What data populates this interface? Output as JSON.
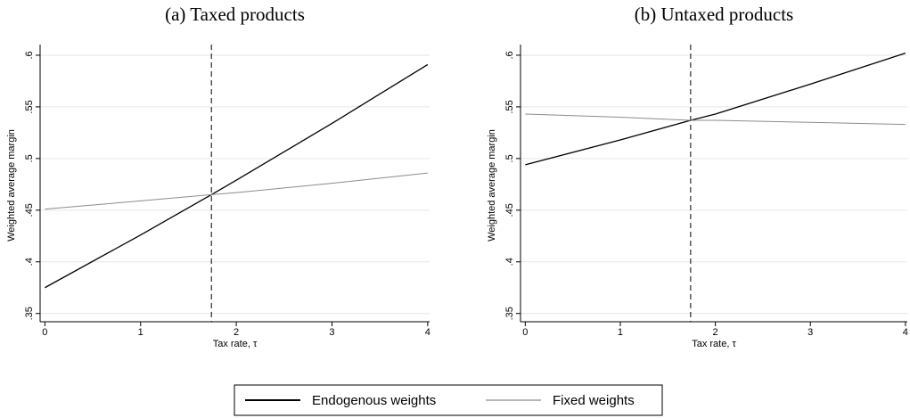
{
  "chart_data": [
    {
      "type": "line",
      "title": "(a) Taxed products",
      "x_label": "Tax rate, τ",
      "y_label": "Weighted average margin",
      "x": [
        0,
        1,
        1.74,
        2,
        3,
        4
      ],
      "series": [
        {
          "name": "Endogenous weights",
          "color": "#000000",
          "values": [
            0.375,
            0.426,
            0.465,
            0.479,
            0.534,
            0.591
          ]
        },
        {
          "name": "Fixed weights",
          "color": "#8c8c8c",
          "values": [
            0.451,
            0.459,
            0.465,
            0.467,
            0.476,
            0.486
          ]
        }
      ],
      "vline": 1.74,
      "xlim": [
        -0.05,
        4.02
      ],
      "xticks": [
        0,
        1,
        2,
        3,
        4
      ],
      "ylim": [
        0.342,
        0.606
      ],
      "yticks": [
        {
          "value": 0.35,
          "label": ".35"
        },
        {
          "value": 0.4,
          "label": ".4"
        },
        {
          "value": 0.45,
          "label": ".45"
        },
        {
          "value": 0.5,
          "label": ".5"
        },
        {
          "value": 0.55,
          "label": ".55"
        },
        {
          "value": 0.6,
          "label": ".6"
        }
      ],
      "grid": true
    },
    {
      "type": "line",
      "title": "(b) Untaxed products",
      "x_label": "Tax rate, τ",
      "y_label": "Weighted average margin",
      "x": [
        0,
        1,
        1.74,
        2,
        3,
        4
      ],
      "series": [
        {
          "color": "#000000",
          "values": [
            0.494,
            0.518,
            0.537,
            0.543,
            0.572,
            0.602
          ]
        },
        {
          "color": "#8c8c8c",
          "values": [
            0.543,
            0.54,
            0.537,
            0.537,
            0.535,
            0.533
          ]
        }
      ],
      "vline": 1.74,
      "xlim": [
        -0.05,
        4.02
      ],
      "xticks": [
        0,
        1,
        2,
        3,
        4
      ],
      "ylim": [
        0.342,
        0.606
      ],
      "yticks": [
        {
          "value": 0.35,
          "label": ".35"
        },
        {
          "value": 0.4,
          "label": ".4"
        },
        {
          "value": 0.45,
          "label": ".45"
        },
        {
          "value": 0.5,
          "label": ".5"
        },
        {
          "value": 0.55,
          "label": ".55"
        },
        {
          "value": 0.6,
          "label": ".6"
        }
      ],
      "grid": true
    }
  ]
}
